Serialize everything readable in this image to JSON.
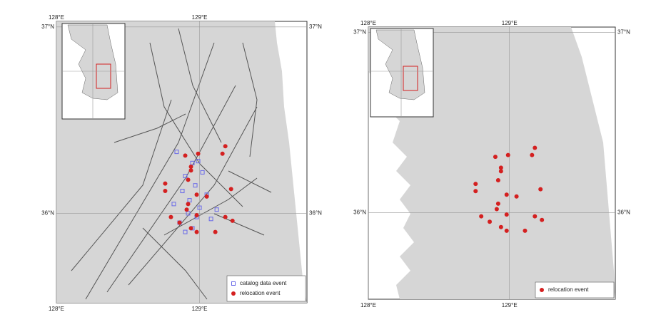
{
  "chart_data": [
    {
      "type": "map",
      "xlim": [
        128,
        129.75
      ],
      "ylim": [
        35.52,
        37.03
      ],
      "xticks": [
        {
          "value": 128,
          "label": "128°E"
        },
        {
          "value": 129,
          "label": "129°E"
        }
      ],
      "yticks": [
        {
          "value": 37,
          "label": "37°N"
        },
        {
          "value": 36,
          "label": "36°N"
        }
      ],
      "grid": true,
      "legend": "lower right",
      "series": [
        {
          "name": "catalog data event",
          "color": "#6a6ae8",
          "marker": "square",
          "x": [
            128.84,
            128.95,
            129.02,
            128.9,
            128.97,
            128.88,
            129.05,
            128.93,
            128.82,
            129.0,
            128.92,
            128.98,
            128.86,
            129.08,
            128.95,
            128.9,
            129.12,
            128.99
          ],
          "values": [
            36.33,
            36.27,
            36.22,
            36.2,
            36.15,
            36.12,
            36.1,
            36.07,
            36.05,
            36.03,
            36.0,
            35.98,
            35.95,
            35.97,
            35.92,
            35.9,
            36.02,
            36.28
          ]
        },
        {
          "name": "relocation event",
          "color": "#d42020",
          "marker": "circle",
          "x": [
            128.9,
            128.99,
            129.18,
            129.16,
            128.94,
            128.94,
            128.92,
            128.76,
            128.76,
            129.22,
            128.98,
            129.05,
            128.92,
            128.91,
            128.98,
            128.8,
            128.86,
            129.18,
            129.23,
            128.94,
            128.98,
            129.11
          ],
          "values": [
            36.31,
            36.32,
            36.36,
            36.32,
            36.25,
            36.23,
            36.18,
            36.16,
            36.12,
            36.13,
            36.1,
            36.09,
            36.05,
            36.02,
            35.99,
            35.98,
            35.95,
            35.98,
            35.96,
            35.92,
            35.9,
            35.9
          ]
        }
      ]
    },
    {
      "type": "map",
      "xlim": [
        128,
        129.75
      ],
      "ylim": [
        35.52,
        37.03
      ],
      "xticks": [
        {
          "value": 128,
          "label": "128°E"
        },
        {
          "value": 129,
          "label": "129°E"
        }
      ],
      "yticks": [
        {
          "value": 37,
          "label": "37°N"
        },
        {
          "value": 36,
          "label": "36°N"
        }
      ],
      "grid": true,
      "legend": "lower right",
      "series": [
        {
          "name": "relocation event",
          "color": "#d42020",
          "marker": "circle",
          "x": [
            128.9,
            128.99,
            129.18,
            129.16,
            128.94,
            128.94,
            128.92,
            128.76,
            128.76,
            129.22,
            128.98,
            129.05,
            128.92,
            128.91,
            128.98,
            128.8,
            128.86,
            129.18,
            129.23,
            128.94,
            128.98,
            129.11
          ],
          "values": [
            36.31,
            36.32,
            36.36,
            36.32,
            36.25,
            36.23,
            36.18,
            36.16,
            36.12,
            36.13,
            36.1,
            36.09,
            36.05,
            36.02,
            35.99,
            35.98,
            35.95,
            35.98,
            35.96,
            35.92,
            35.9,
            35.9
          ]
        }
      ]
    }
  ]
}
